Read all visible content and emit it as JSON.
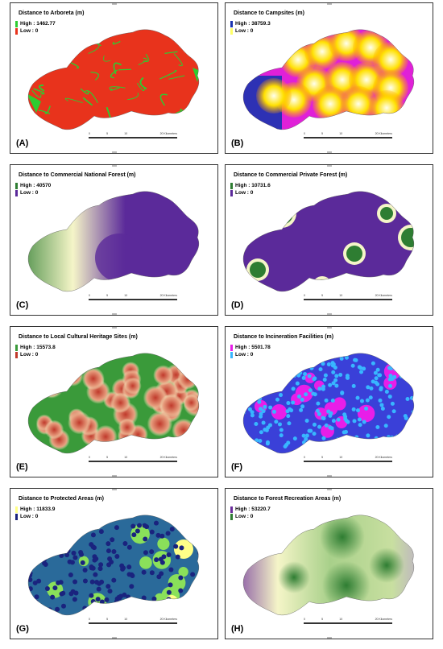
{
  "panels": [
    {
      "id": "A",
      "title": "Distance to Arboreta (m)",
      "high": "High : 1462.77",
      "low": "Low : 0",
      "label": "(A)",
      "colors": {
        "high": "#2ecc30",
        "low": "#e8331c"
      }
    },
    {
      "id": "B",
      "title": "Distance to Campsites (m)",
      "high": "High : 38759.3",
      "low": "Low : 0",
      "label": "(B)",
      "colors": {
        "high": "#1a33b0",
        "low": "#ffff66"
      }
    },
    {
      "id": "C",
      "title": "Distance to Commercial National Forest (m)",
      "high": "High : 40570",
      "low": "Low : 0",
      "label": "(C)",
      "colors": {
        "high": "#2e7d32",
        "low": "#5b2a9a"
      }
    },
    {
      "id": "D",
      "title": "Distance to Commercial Private Forest (m)",
      "high": "High : 10731.6",
      "low": "Low : 0",
      "label": "(D)",
      "colors": {
        "high": "#2e7d32",
        "low": "#5b2a9a"
      }
    },
    {
      "id": "E",
      "title": "Distance to Local Cultural Heritage Sites (m)",
      "high": "High : 15573.8",
      "low": "Low : 0",
      "label": "(E)",
      "colors": {
        "high": "#3a9a3a",
        "low": "#c0392b"
      }
    },
    {
      "id": "F",
      "title": "Distance to Incineration Facilities (m)",
      "high": "High : 5501.78",
      "low": "Low : 0",
      "label": "(F)",
      "colors": {
        "high": "#e81ee8",
        "low": "#38b6ff"
      }
    },
    {
      "id": "G",
      "title": "Distance to Protected Areas (m)",
      "high": "High : 11833.9",
      "low": "Low : 0",
      "label": "(G)",
      "colors": {
        "high": "#ffff88",
        "low": "#1a237e"
      }
    },
    {
      "id": "H",
      "title": "Distance to Forest Recreation Areas (m)",
      "high": "High : 53220.7",
      "low": "Low : 0",
      "label": "(H)",
      "colors": {
        "high": "#6a2c9a",
        "low": "#2e7d32"
      }
    }
  ],
  "scale_bar": {
    "ticks": [
      "0",
      "5",
      "10",
      "",
      "20 Kilometers"
    ]
  }
}
